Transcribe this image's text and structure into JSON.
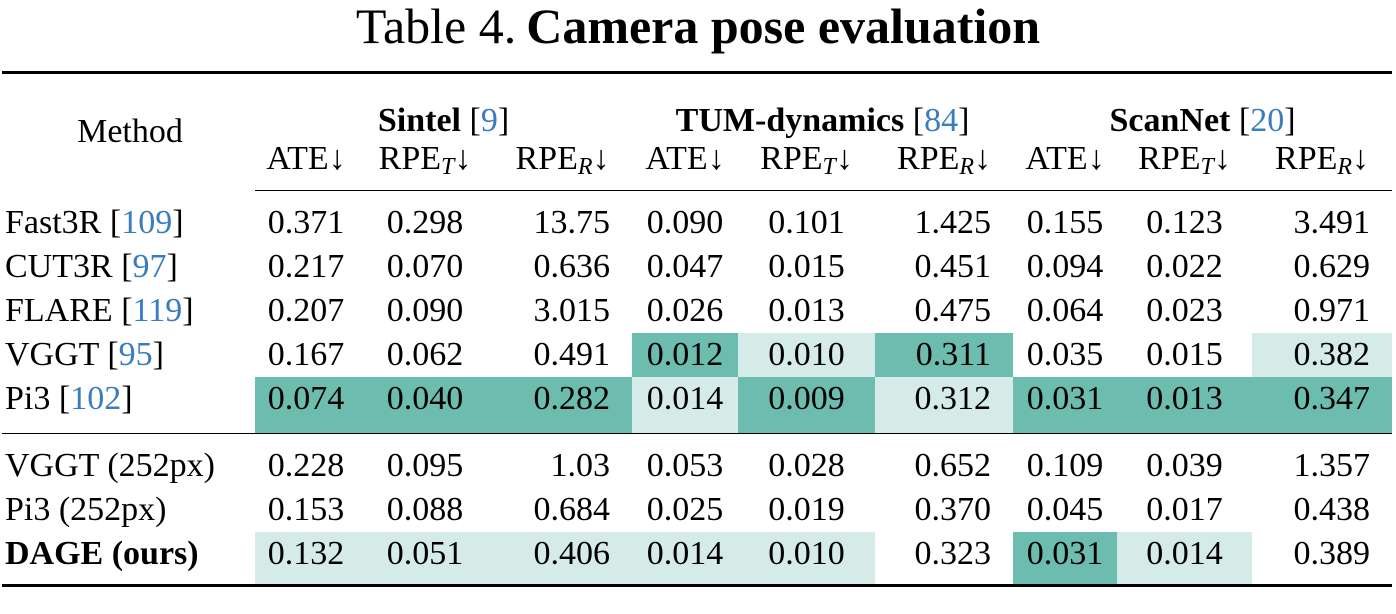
{
  "title": {
    "label": "Table 4.",
    "text": "Camera pose evaluation"
  },
  "brackets": [
    "[",
    "]"
  ],
  "table": {
    "method_header": "Method",
    "groups": [
      {
        "name": "Sintel",
        "ref": "9"
      },
      {
        "name": "TUM-dynamics",
        "ref": "84"
      },
      {
        "name": "ScanNet",
        "ref": "20"
      }
    ],
    "metrics": [
      {
        "name": "ATE",
        "sub": null,
        "arrow": "↓"
      },
      {
        "name": "RPE",
        "sub": "T",
        "arrow": "↓"
      },
      {
        "name": "RPE",
        "sub": "R",
        "arrow": "↓"
      }
    ],
    "highlight_colors": {
      "best": "#6cbcb0",
      "second": "#d4ebe7"
    },
    "ref_color": "#3a7cc0",
    "sections": [
      {
        "rows": [
          {
            "method": "Fast3R",
            "ref": "109",
            "bold": false,
            "cells": [
              "0.371",
              "0.298",
              "13.75",
              "0.090",
              "0.101",
              "1.425",
              "0.155",
              "0.123",
              "3.491"
            ],
            "highlight": [
              null,
              null,
              null,
              null,
              null,
              null,
              null,
              null,
              null
            ]
          },
          {
            "method": "CUT3R",
            "ref": "97",
            "bold": false,
            "cells": [
              "0.217",
              "0.070",
              "0.636",
              "0.047",
              "0.015",
              "0.451",
              "0.094",
              "0.022",
              "0.629"
            ],
            "highlight": [
              null,
              null,
              null,
              null,
              null,
              null,
              null,
              null,
              null
            ]
          },
          {
            "method": "FLARE",
            "ref": "119",
            "bold": false,
            "cells": [
              "0.207",
              "0.090",
              "3.015",
              "0.026",
              "0.013",
              "0.475",
              "0.064",
              "0.023",
              "0.971"
            ],
            "highlight": [
              null,
              null,
              null,
              null,
              null,
              null,
              null,
              null,
              null
            ]
          },
          {
            "method": "VGGT",
            "ref": "95",
            "bold": false,
            "cells": [
              "0.167",
              "0.062",
              "0.491",
              "0.012",
              "0.010",
              "0.311",
              "0.035",
              "0.015",
              "0.382"
            ],
            "highlight": [
              null,
              null,
              null,
              "best",
              "second",
              "best",
              null,
              null,
              "second"
            ]
          },
          {
            "method": "Pi3",
            "ref": "102",
            "bold": false,
            "cells": [
              "0.074",
              "0.040",
              "0.282",
              "0.014",
              "0.009",
              "0.312",
              "0.031",
              "0.013",
              "0.347"
            ],
            "highlight": [
              "best",
              "best",
              "best",
              "second",
              "best",
              "second",
              "best",
              "best",
              "best"
            ]
          }
        ]
      },
      {
        "rows": [
          {
            "method": "VGGT (252px)",
            "ref": null,
            "bold": false,
            "cells": [
              "0.228",
              "0.095",
              "1.03",
              "0.053",
              "0.028",
              "0.652",
              "0.109",
              "0.039",
              "1.357"
            ],
            "highlight": [
              null,
              null,
              null,
              null,
              null,
              null,
              null,
              null,
              null
            ]
          },
          {
            "method": "Pi3 (252px)",
            "ref": null,
            "bold": false,
            "cells": [
              "0.153",
              "0.088",
              "0.684",
              "0.025",
              "0.019",
              "0.370",
              "0.045",
              "0.017",
              "0.438"
            ],
            "highlight": [
              null,
              null,
              null,
              null,
              null,
              null,
              null,
              null,
              null
            ]
          },
          {
            "method": "DAGE (ours)",
            "ref": null,
            "bold": true,
            "cells": [
              "0.132",
              "0.051",
              "0.406",
              "0.014",
              "0.010",
              "0.323",
              "0.031",
              "0.014",
              "0.389"
            ],
            "highlight": [
              "second",
              "second",
              "second",
              "second",
              "second",
              null,
              "best",
              "second",
              null
            ]
          }
        ]
      }
    ]
  }
}
